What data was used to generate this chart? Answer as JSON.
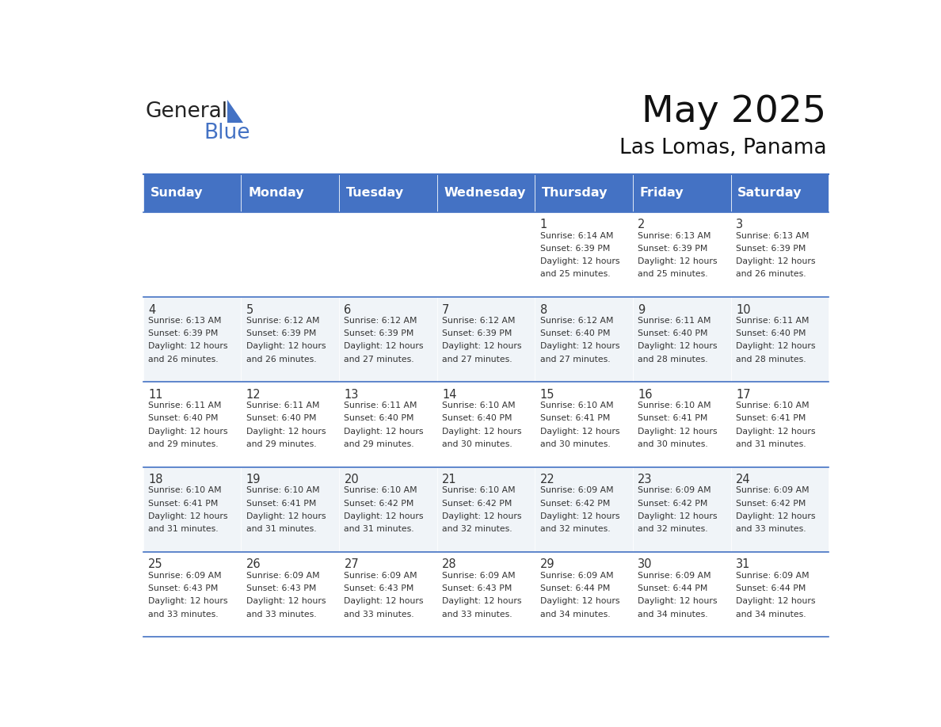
{
  "title": "May 2025",
  "subtitle": "Las Lomas, Panama",
  "header_bg_color": "#4472C4",
  "header_text_color": "#FFFFFF",
  "day_names": [
    "Sunday",
    "Monday",
    "Tuesday",
    "Wednesday",
    "Thursday",
    "Friday",
    "Saturday"
  ],
  "row_bg_even": "#FFFFFF",
  "row_bg_odd": "#F0F4F8",
  "border_color": "#4472C4",
  "text_color_info": "#333333",
  "num_color": "#333333",
  "calendar": [
    [
      null,
      null,
      null,
      null,
      {
        "day": 1,
        "sunrise": "6:14 AM",
        "sunset": "6:39 PM",
        "daylight": "12 hours and 25 minutes."
      },
      {
        "day": 2,
        "sunrise": "6:13 AM",
        "sunset": "6:39 PM",
        "daylight": "12 hours and 25 minutes."
      },
      {
        "day": 3,
        "sunrise": "6:13 AM",
        "sunset": "6:39 PM",
        "daylight": "12 hours and 26 minutes."
      }
    ],
    [
      {
        "day": 4,
        "sunrise": "6:13 AM",
        "sunset": "6:39 PM",
        "daylight": "12 hours and 26 minutes."
      },
      {
        "day": 5,
        "sunrise": "6:12 AM",
        "sunset": "6:39 PM",
        "daylight": "12 hours and 26 minutes."
      },
      {
        "day": 6,
        "sunrise": "6:12 AM",
        "sunset": "6:39 PM",
        "daylight": "12 hours and 27 minutes."
      },
      {
        "day": 7,
        "sunrise": "6:12 AM",
        "sunset": "6:39 PM",
        "daylight": "12 hours and 27 minutes."
      },
      {
        "day": 8,
        "sunrise": "6:12 AM",
        "sunset": "6:40 PM",
        "daylight": "12 hours and 27 minutes."
      },
      {
        "day": 9,
        "sunrise": "6:11 AM",
        "sunset": "6:40 PM",
        "daylight": "12 hours and 28 minutes."
      },
      {
        "day": 10,
        "sunrise": "6:11 AM",
        "sunset": "6:40 PM",
        "daylight": "12 hours and 28 minutes."
      }
    ],
    [
      {
        "day": 11,
        "sunrise": "6:11 AM",
        "sunset": "6:40 PM",
        "daylight": "12 hours and 29 minutes."
      },
      {
        "day": 12,
        "sunrise": "6:11 AM",
        "sunset": "6:40 PM",
        "daylight": "12 hours and 29 minutes."
      },
      {
        "day": 13,
        "sunrise": "6:11 AM",
        "sunset": "6:40 PM",
        "daylight": "12 hours and 29 minutes."
      },
      {
        "day": 14,
        "sunrise": "6:10 AM",
        "sunset": "6:40 PM",
        "daylight": "12 hours and 30 minutes."
      },
      {
        "day": 15,
        "sunrise": "6:10 AM",
        "sunset": "6:41 PM",
        "daylight": "12 hours and 30 minutes."
      },
      {
        "day": 16,
        "sunrise": "6:10 AM",
        "sunset": "6:41 PM",
        "daylight": "12 hours and 30 minutes."
      },
      {
        "day": 17,
        "sunrise": "6:10 AM",
        "sunset": "6:41 PM",
        "daylight": "12 hours and 31 minutes."
      }
    ],
    [
      {
        "day": 18,
        "sunrise": "6:10 AM",
        "sunset": "6:41 PM",
        "daylight": "12 hours and 31 minutes."
      },
      {
        "day": 19,
        "sunrise": "6:10 AM",
        "sunset": "6:41 PM",
        "daylight": "12 hours and 31 minutes."
      },
      {
        "day": 20,
        "sunrise": "6:10 AM",
        "sunset": "6:42 PM",
        "daylight": "12 hours and 31 minutes."
      },
      {
        "day": 21,
        "sunrise": "6:10 AM",
        "sunset": "6:42 PM",
        "daylight": "12 hours and 32 minutes."
      },
      {
        "day": 22,
        "sunrise": "6:09 AM",
        "sunset": "6:42 PM",
        "daylight": "12 hours and 32 minutes."
      },
      {
        "day": 23,
        "sunrise": "6:09 AM",
        "sunset": "6:42 PM",
        "daylight": "12 hours and 32 minutes."
      },
      {
        "day": 24,
        "sunrise": "6:09 AM",
        "sunset": "6:42 PM",
        "daylight": "12 hours and 33 minutes."
      }
    ],
    [
      {
        "day": 25,
        "sunrise": "6:09 AM",
        "sunset": "6:43 PM",
        "daylight": "12 hours and 33 minutes."
      },
      {
        "day": 26,
        "sunrise": "6:09 AM",
        "sunset": "6:43 PM",
        "daylight": "12 hours and 33 minutes."
      },
      {
        "day": 27,
        "sunrise": "6:09 AM",
        "sunset": "6:43 PM",
        "daylight": "12 hours and 33 minutes."
      },
      {
        "day": 28,
        "sunrise": "6:09 AM",
        "sunset": "6:43 PM",
        "daylight": "12 hours and 33 minutes."
      },
      {
        "day": 29,
        "sunrise": "6:09 AM",
        "sunset": "6:44 PM",
        "daylight": "12 hours and 34 minutes."
      },
      {
        "day": 30,
        "sunrise": "6:09 AM",
        "sunset": "6:44 PM",
        "daylight": "12 hours and 34 minutes."
      },
      {
        "day": 31,
        "sunrise": "6:09 AM",
        "sunset": "6:44 PM",
        "daylight": "12 hours and 34 minutes."
      }
    ]
  ]
}
